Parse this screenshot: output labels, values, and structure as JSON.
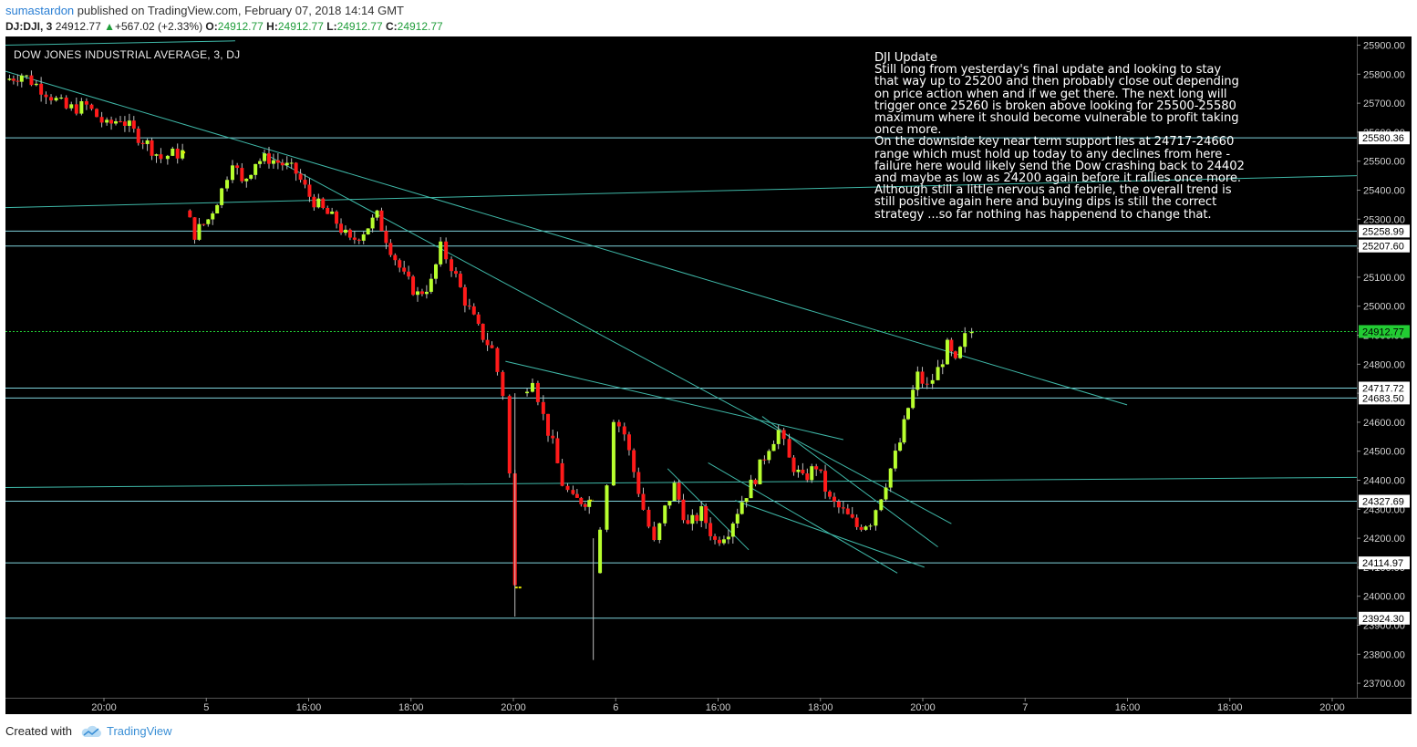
{
  "header": {
    "author": "sumastardon",
    "published_text": "published on TradingView.com, February 07, 2018 14:14 GMT",
    "symbol": "DJ:DJI, 3",
    "last_price": "24912.77",
    "change_arrow": "▲",
    "change": "+567.02 (+2.33%)",
    "open_label": "O:",
    "open": "24912.77",
    "high_label": "H:",
    "high": "24912.77",
    "low_label": "L:",
    "low": "24912.77",
    "close_label": "C:",
    "close": "24912.77"
  },
  "footer": {
    "created_with": "Created with",
    "brand": "TradingView",
    "logo_icon": "tradingview-cloud-icon"
  },
  "colors": {
    "background": "#000000",
    "bull_candle": "#b8ff2e",
    "bear_candle": "#ff1a1a",
    "hline": "#7fd3dc",
    "trendline": "#3fb8a8",
    "last_price": "#22cc33",
    "axis_text": "#cfcfcf"
  },
  "chart_data": {
    "type": "candlestick",
    "title": "DOW JONES INDUSTRIAL AVERAGE, 3, DJ",
    "interval": "3 min",
    "ylim": [
      23650,
      25930
    ],
    "y_ticks": [
      23700,
      23800,
      23900,
      24000,
      24100,
      24200,
      24300,
      24400,
      24500,
      24600,
      24700,
      24800,
      24900,
      25000,
      25100,
      25200,
      25300,
      25400,
      25500,
      25600,
      25700,
      25800,
      25900
    ],
    "x_ticks": [
      "20:00",
      "5",
      "16:00",
      "18:00",
      "20:00",
      "6",
      "16:00",
      "18:00",
      "20:00",
      "7",
      "16:00",
      "18:00",
      "20:00"
    ],
    "grid": false,
    "horizontal_levels": [
      {
        "value": 25580.36,
        "label": "25580.36"
      },
      {
        "value": 25258.99,
        "label": "25258.99"
      },
      {
        "value": 25207.6,
        "label": "25207.60"
      },
      {
        "value": 24717.72,
        "label": "24717.72"
      },
      {
        "value": 24683.5,
        "label": "24683.50"
      },
      {
        "value": 24327.69,
        "label": "24327.69"
      },
      {
        "value": 24114.97,
        "label": "24114.97"
      },
      {
        "value": 23924.3,
        "label": "23924.30"
      }
    ],
    "last_price": {
      "value": 24912.77,
      "label": "24912.77"
    },
    "trendlines": [
      [
        {
          "x": 0.0,
          "y": 25900
        },
        {
          "x": 0.17,
          "y": 25915
        }
      ],
      [
        {
          "x": 0.0,
          "y": 25810
        },
        {
          "x": 0.83,
          "y": 24660
        }
      ],
      [
        {
          "x": 0.19,
          "y": 25530
        },
        {
          "x": 0.7,
          "y": 24250
        }
      ],
      [
        {
          "x": 0.0,
          "y": 25340
        },
        {
          "x": 1.0,
          "y": 25450
        }
      ],
      [
        {
          "x": 0.0,
          "y": 24375
        },
        {
          "x": 1.0,
          "y": 24410
        }
      ],
      [
        {
          "x": 0.37,
          "y": 24810
        },
        {
          "x": 0.62,
          "y": 24540
        }
      ],
      [
        {
          "x": 0.54,
          "y": 24330
        },
        {
          "x": 0.68,
          "y": 24100
        }
      ],
      [
        {
          "x": 0.49,
          "y": 24440
        },
        {
          "x": 0.55,
          "y": 24160
        }
      ],
      [
        {
          "x": 0.56,
          "y": 24620
        },
        {
          "x": 0.69,
          "y": 24170
        }
      ],
      [
        {
          "x": 0.52,
          "y": 24460
        },
        {
          "x": 0.66,
          "y": 24080
        }
      ]
    ],
    "price_path": [
      [
        0.0,
        25780
      ],
      [
        0.012,
        25800
      ],
      [
        0.03,
        25740
      ],
      [
        0.045,
        25680
      ],
      [
        0.06,
        25690
      ],
      [
        0.075,
        25620
      ],
      [
        0.085,
        25650
      ],
      [
        0.095,
        25600
      ],
      [
        0.105,
        25560
      ],
      [
        0.115,
        25510
      ],
      [
        0.12,
        25520
      ],
      [
        0.131,
        25530
      ],
      [
        0.133,
        25330
      ],
      [
        0.14,
        25250
      ],
      [
        0.15,
        25300
      ],
      [
        0.16,
        25400
      ],
      [
        0.168,
        25510
      ],
      [
        0.175,
        25420
      ],
      [
        0.185,
        25500
      ],
      [
        0.195,
        25510
      ],
      [
        0.205,
        25490
      ],
      [
        0.215,
        25460
      ],
      [
        0.225,
        25380
      ],
      [
        0.235,
        25330
      ],
      [
        0.245,
        25290
      ],
      [
        0.255,
        25220
      ],
      [
        0.265,
        25260
      ],
      [
        0.275,
        25310
      ],
      [
        0.285,
        25200
      ],
      [
        0.295,
        25100
      ],
      [
        0.305,
        25040
      ],
      [
        0.315,
        25080
      ],
      [
        0.322,
        25200
      ],
      [
        0.33,
        25140
      ],
      [
        0.34,
        25020
      ],
      [
        0.35,
        24920
      ],
      [
        0.36,
        24850
      ],
      [
        0.368,
        24700
      ],
      [
        0.373,
        24420
      ],
      [
        0.377,
        24030
      ],
      [
        0.382,
        24700
      ],
      [
        0.39,
        24760
      ],
      [
        0.398,
        24620
      ],
      [
        0.405,
        24520
      ],
      [
        0.412,
        24390
      ],
      [
        0.42,
        24330
      ],
      [
        0.432,
        24330
      ],
      [
        0.435,
        24080
      ],
      [
        0.44,
        24250
      ],
      [
        0.445,
        24400
      ],
      [
        0.45,
        24620
      ],
      [
        0.458,
        24560
      ],
      [
        0.465,
        24430
      ],
      [
        0.472,
        24300
      ],
      [
        0.48,
        24180
      ],
      [
        0.488,
        24300
      ],
      [
        0.495,
        24380
      ],
      [
        0.505,
        24240
      ],
      [
        0.515,
        24290
      ],
      [
        0.525,
        24190
      ],
      [
        0.535,
        24230
      ],
      [
        0.545,
        24330
      ],
      [
        0.555,
        24410
      ],
      [
        0.565,
        24520
      ],
      [
        0.572,
        24570
      ],
      [
        0.58,
        24470
      ],
      [
        0.59,
        24400
      ],
      [
        0.6,
        24450
      ],
      [
        0.61,
        24330
      ],
      [
        0.62,
        24290
      ],
      [
        0.63,
        24240
      ],
      [
        0.64,
        24260
      ],
      [
        0.648,
        24350
      ],
      [
        0.655,
        24440
      ],
      [
        0.662,
        24530
      ],
      [
        0.668,
        24650
      ],
      [
        0.675,
        24760
      ],
      [
        0.682,
        24720
      ],
      [
        0.69,
        24780
      ],
      [
        0.697,
        24860
      ],
      [
        0.703,
        24800
      ],
      [
        0.71,
        24890
      ],
      [
        0.715,
        24912.77
      ]
    ]
  },
  "annotation": {
    "title": "DJI  Update",
    "lines": [
      "Still long from yesterday's final update and looking to stay",
      "that way up to 25200 and then probably close out depending",
      "on price action when and if we get there. The next long will",
      "trigger once 25260 is broken above looking for 25500-25580",
      "maximum where it should become vulnerable to profit taking",
      "once more.",
      "On the downside key near term support lies at 24717-24660",
      "range which must hold up today to any declines from here -",
      "failure here would likely send the Dow crashing back to 24402",
      "and maybe as low as 24200 again before it rallies once more.",
      "Although still a little nervous and febrile, the overall trend is",
      "still positive again here and buying dips is still the correct",
      "strategy ...so far nothing has happenend to change that."
    ]
  }
}
